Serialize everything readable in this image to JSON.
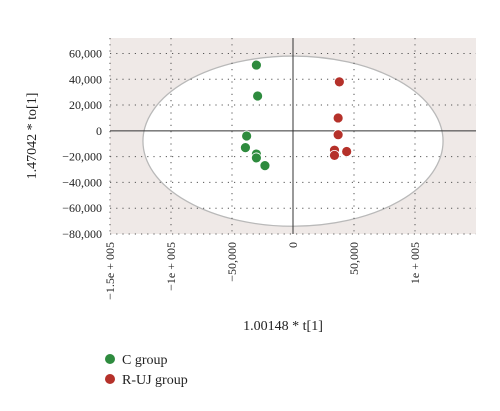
{
  "chart_data": {
    "type": "scatter",
    "xlabel": "1.00148 * t[1]",
    "ylabel": "1.47042 * to[1]",
    "xlim": [
      -150000,
      150000
    ],
    "ylim": [
      -80000,
      72000
    ],
    "x_ticks": [
      {
        "value": -150000,
        "label": "−1.5e + 005"
      },
      {
        "value": -100000,
        "label": "−1e + 005"
      },
      {
        "value": -50000,
        "label": "−50,000"
      },
      {
        "value": 0,
        "label": "0"
      },
      {
        "value": 50000,
        "label": "50,000"
      },
      {
        "value": 100000,
        "label": "1e + 005"
      }
    ],
    "y_ticks": [
      {
        "value": 60000,
        "label": "60,000"
      },
      {
        "value": 40000,
        "label": "40,000"
      },
      {
        "value": 20000,
        "label": "20,000"
      },
      {
        "value": 0,
        "label": "0"
      },
      {
        "value": -20000,
        "label": "−20,000"
      },
      {
        "value": -40000,
        "label": "−40,000"
      },
      {
        "value": -60000,
        "label": "−60,000"
      },
      {
        "value": -80000,
        "label": "−80,000"
      }
    ],
    "grid": true,
    "legend_position": "bottom-left",
    "confidence_ellipse": {
      "cx": 0,
      "cy": -8000,
      "rx": 123000,
      "ry": 66000
    },
    "series": [
      {
        "name": "C group",
        "color": "#2e8b3e",
        "points": [
          [
            -30000,
            51000
          ],
          [
            -29000,
            27000
          ],
          [
            -38000,
            -4000
          ],
          [
            -39000,
            -13000
          ],
          [
            -30000,
            -18000
          ],
          [
            -30000,
            -21000
          ],
          [
            -23000,
            -27000
          ]
        ]
      },
      {
        "name": "R-UJ group",
        "color": "#b5312a",
        "points": [
          [
            38000,
            38000
          ],
          [
            37000,
            10000
          ],
          [
            37000,
            -3000
          ],
          [
            34000,
            -15000
          ],
          [
            34000,
            -19000
          ],
          [
            44000,
            -16000
          ]
        ]
      }
    ]
  }
}
